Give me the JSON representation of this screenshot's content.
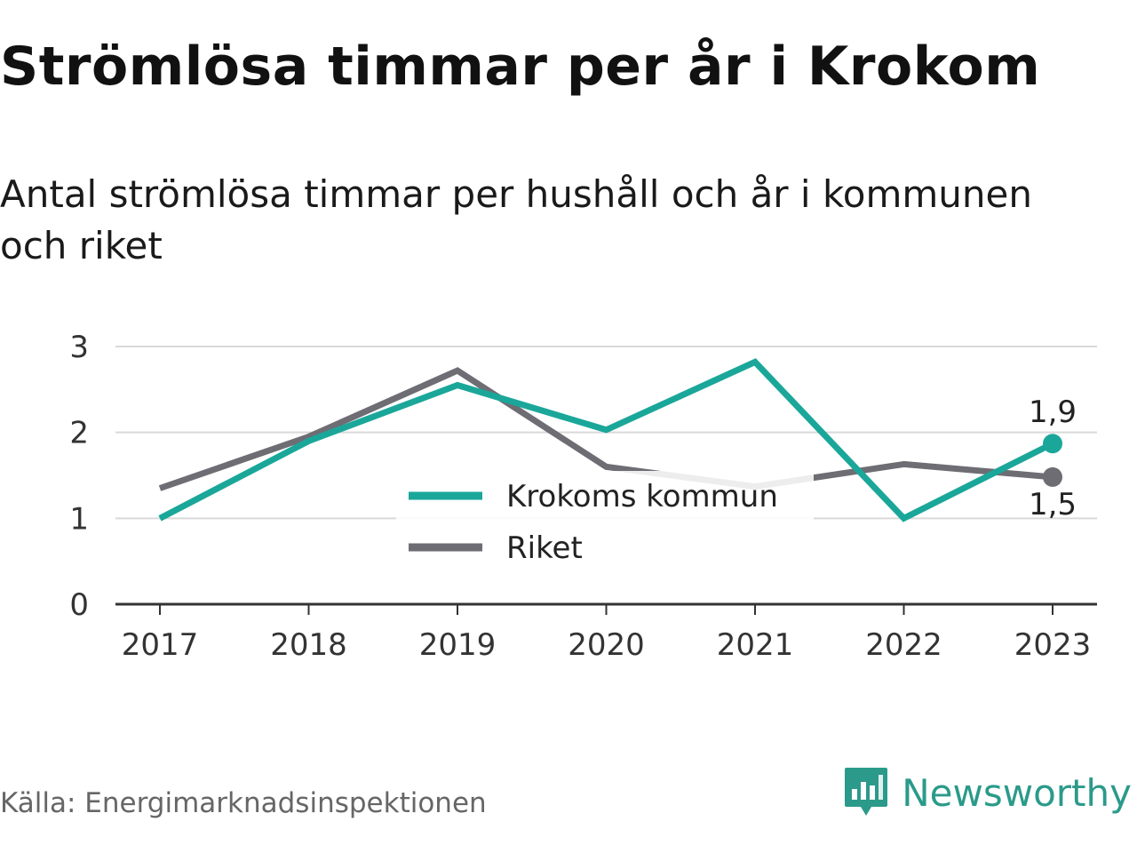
{
  "title": "Strömlösa timmar per år i Krokom",
  "subtitle": "Antal strömlösa timmar per hushåll och år i kommunen och riket",
  "source": "Källa: Energimarknadsinspektionen",
  "brand": "Newsworthy",
  "colors": {
    "krokom": "#1aa79a",
    "riket": "#6e6d74",
    "grid": "#d9d9d9",
    "axis": "#333333",
    "brand": "#2b9a8a"
  },
  "chart_data": {
    "type": "line",
    "categories": [
      "2017",
      "2018",
      "2019",
      "2020",
      "2021",
      "2022",
      "2023"
    ],
    "ylim": [
      0,
      3
    ],
    "yticks": [
      "0",
      "1",
      "2",
      "3"
    ],
    "grid": true,
    "legend_position": "center",
    "series": [
      {
        "name": "Krokoms kommun",
        "values": [
          1.0,
          1.9,
          2.55,
          2.03,
          2.82,
          1.0,
          1.87
        ],
        "end_label": "1,9"
      },
      {
        "name": "Riket",
        "values": [
          1.35,
          1.95,
          2.72,
          1.6,
          1.37,
          1.63,
          1.48
        ],
        "end_label": "1,5"
      }
    ]
  }
}
